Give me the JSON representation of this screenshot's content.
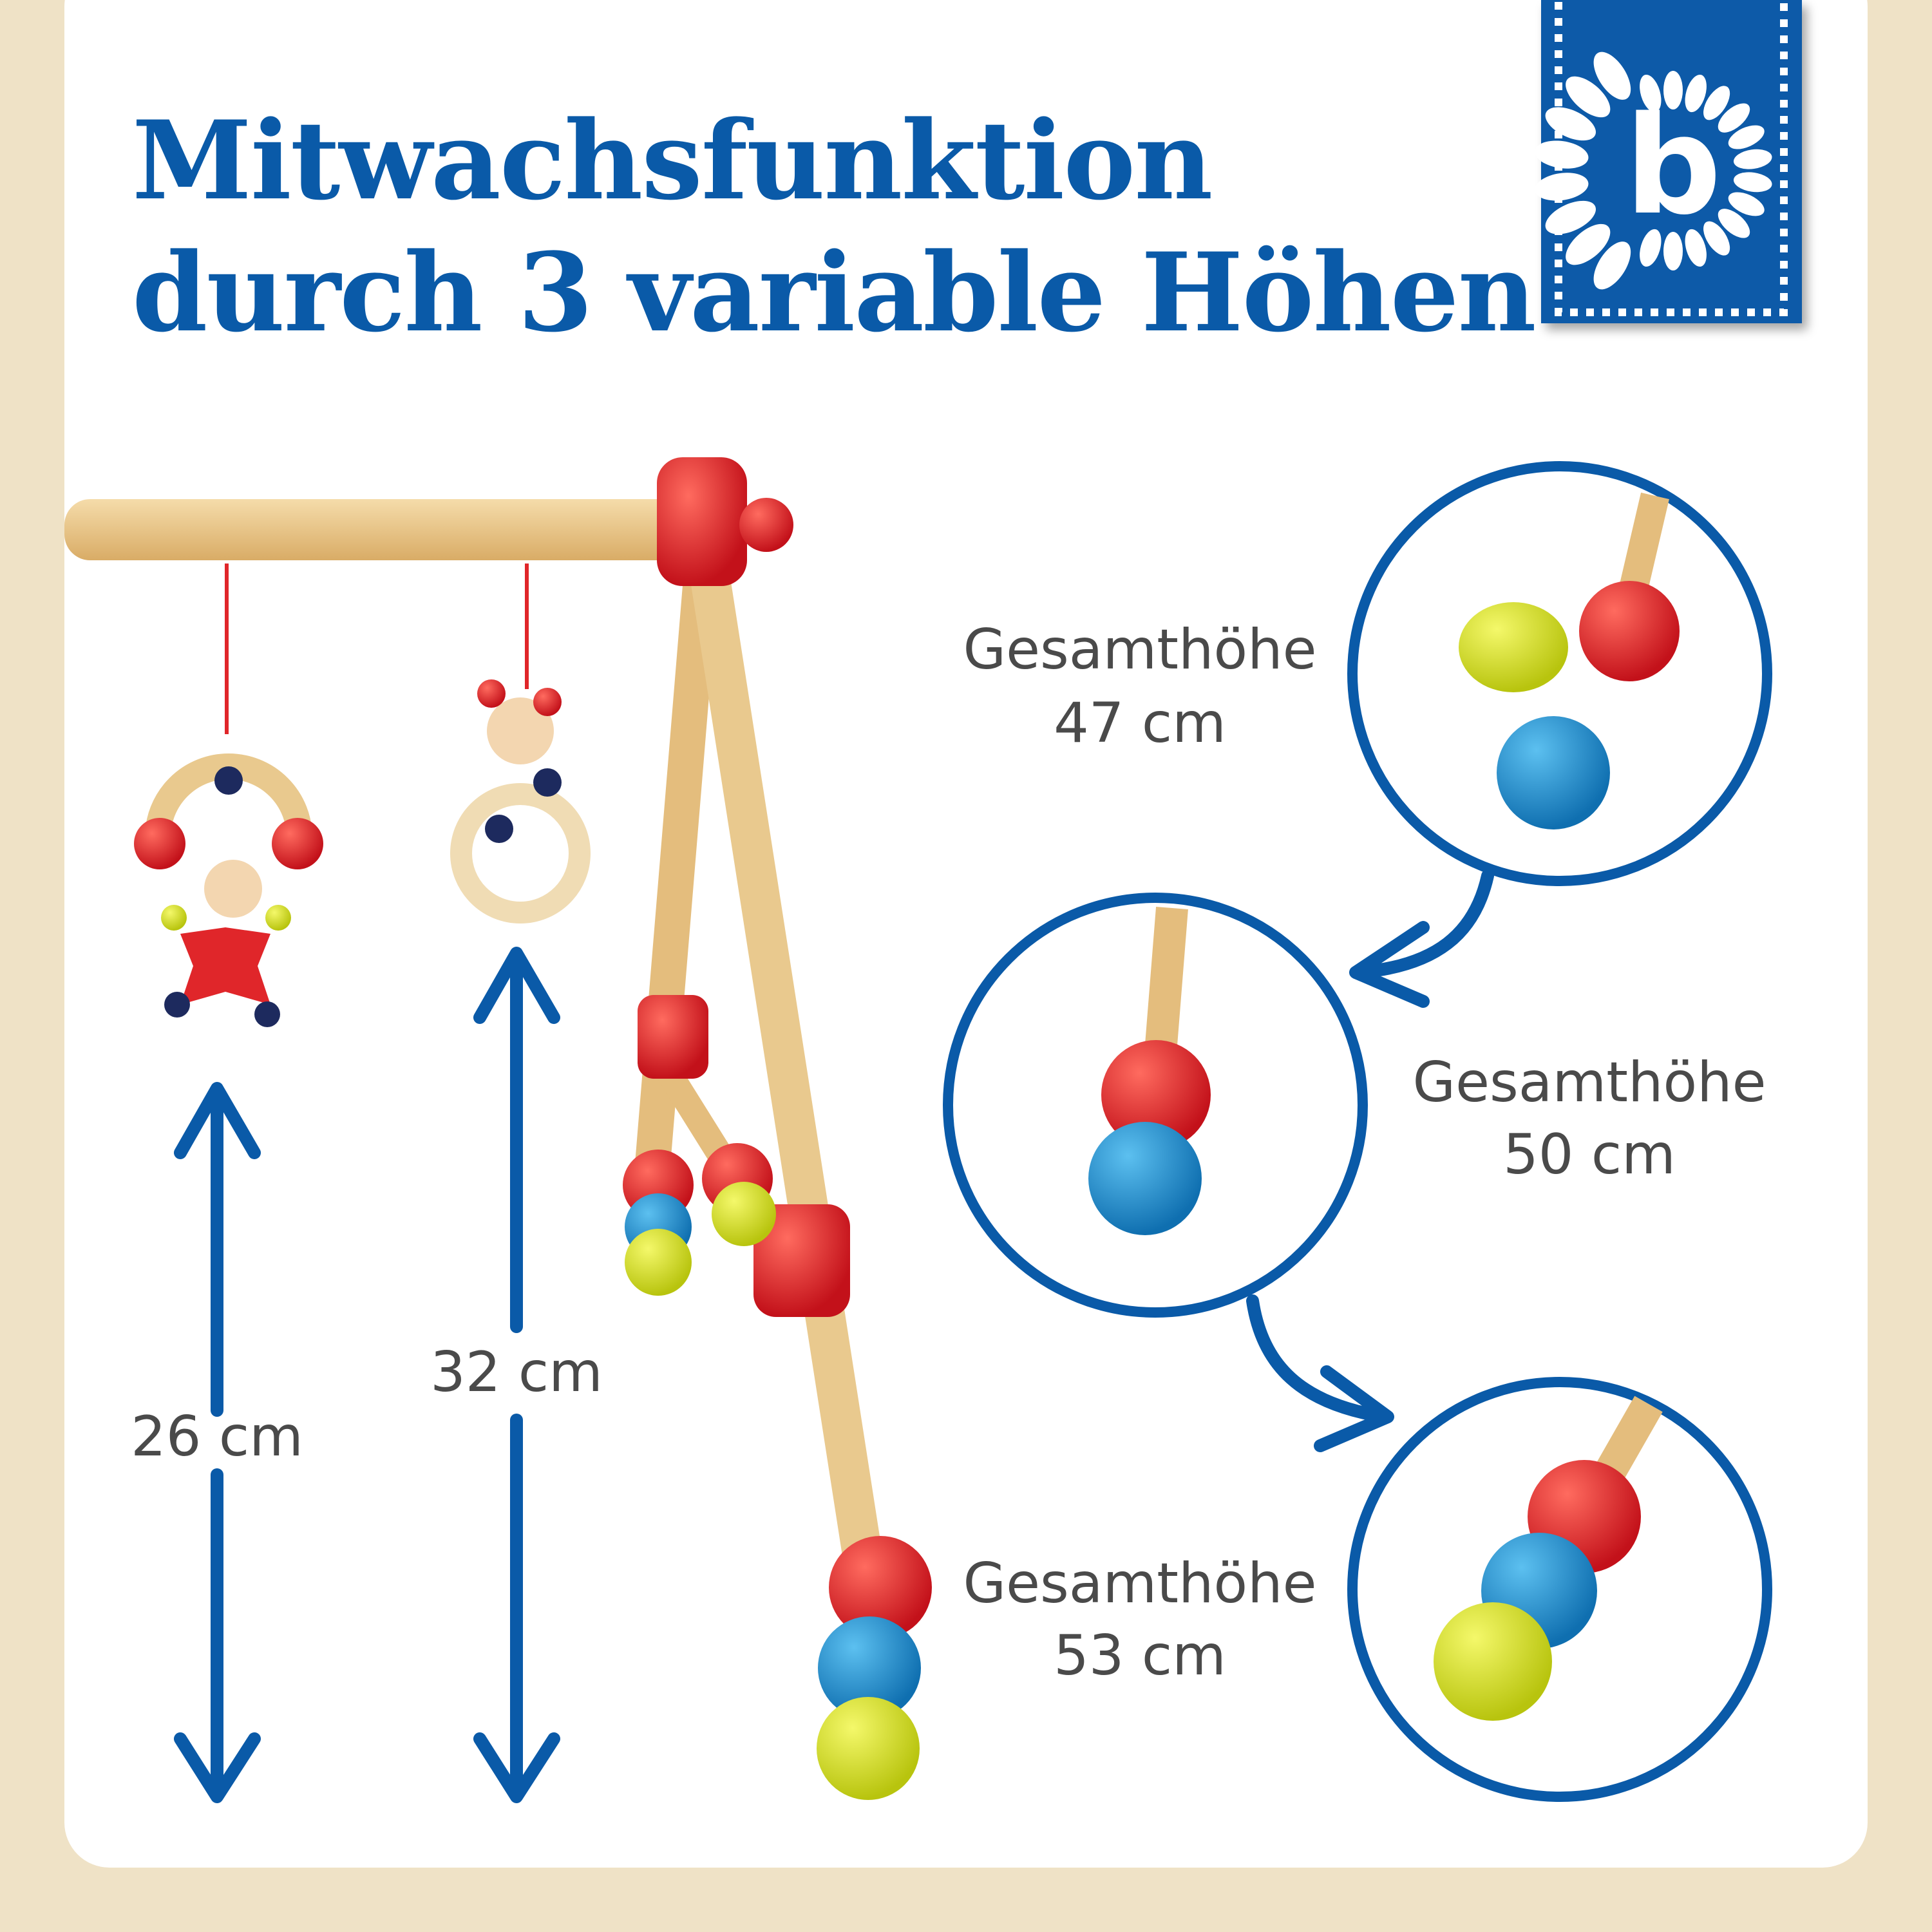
{
  "title": {
    "line1": "Mitwachsfunktion",
    "line2": "durch 3 variable Höhen"
  },
  "logo": {
    "letter": "b",
    "icon": "sunflower-b-logo"
  },
  "colors": {
    "brand_blue": "#0a5aa8",
    "background": "#efe2c6",
    "bead_red": "#e0262a",
    "bead_blue": "#1d8fd0",
    "bead_yellow": "#d8e21e",
    "wood": "#e9c98e"
  },
  "measurements": {
    "hanger1": "26 cm",
    "hanger2": "32 cm"
  },
  "heights": [
    {
      "label": "Gesamthöhe",
      "value": "47 cm"
    },
    {
      "label": "Gesamthöhe",
      "value": "50 cm"
    },
    {
      "label": "Gesamthöhe",
      "value": "53 cm"
    }
  ]
}
